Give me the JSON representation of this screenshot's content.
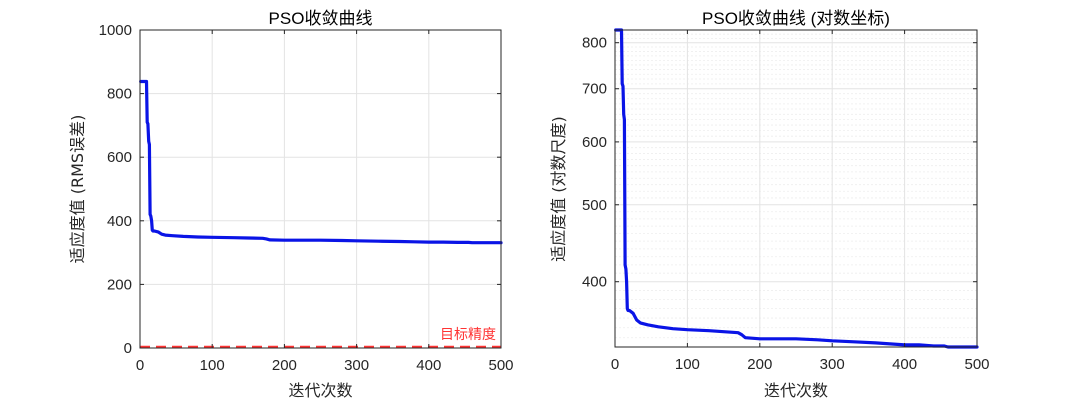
{
  "colors": {
    "curve": "#0a14e6",
    "target": "#ff3333",
    "axis": "#262626",
    "grid": "#e3e3e3",
    "minor_grid": "#eeeeee"
  },
  "chart_data": [
    {
      "type": "line",
      "title": "PSO收敛曲线",
      "xlabel": "迭代次数",
      "ylabel": "适应度值 (RMS误差)",
      "xlim": [
        0,
        500
      ],
      "ylim": [
        0,
        1000
      ],
      "xticks": [
        0,
        100,
        200,
        300,
        400,
        500
      ],
      "yticks": [
        0,
        200,
        400,
        600,
        800,
        1000
      ],
      "grid": true,
      "series": [
        {
          "x": [
            1,
            9,
            10,
            11,
            12,
            13,
            14,
            15,
            16,
            17,
            18,
            20,
            25,
            30,
            35,
            45,
            60,
            80,
            100,
            130,
            150,
            170,
            175,
            180,
            200,
            250,
            280,
            300,
            330,
            360,
            380,
            400,
            420,
            440,
            455,
            460,
            480,
            500
          ],
          "y": [
            838,
            838,
            710,
            705,
            650,
            640,
            420,
            415,
            400,
            370,
            368,
            368,
            365,
            358,
            355,
            353,
            351,
            349,
            348,
            347,
            346,
            345,
            343,
            340,
            339,
            339,
            338,
            337,
            336,
            335,
            334,
            333,
            333,
            332,
            332,
            331,
            331,
            331
          ]
        }
      ],
      "annotation": {
        "text": "目标精度",
        "y": 0
      }
    },
    {
      "type": "line",
      "title": "PSO收敛曲线 (对数坐标)",
      "xlabel": "迭代次数",
      "ylabel": "适应度值 (对数尺度)",
      "yscale": "log",
      "xlim": [
        0,
        500
      ],
      "ylim": [
        331,
        830
      ],
      "xticks": [
        0,
        100,
        200,
        300,
        400,
        500
      ],
      "yticks": [
        400,
        500,
        600,
        700,
        800
      ],
      "grid": true,
      "minor_grid": true,
      "series": [
        {
          "x": [
            1,
            9,
            10,
            11,
            12,
            13,
            14,
            15,
            16,
            17,
            18,
            20,
            25,
            30,
            35,
            45,
            60,
            80,
            100,
            130,
            150,
            170,
            175,
            180,
            200,
            250,
            280,
            300,
            330,
            360,
            380,
            400,
            420,
            440,
            455,
            460,
            480,
            500
          ],
          "y": [
            838,
            838,
            710,
            705,
            650,
            640,
            420,
            415,
            400,
            370,
            368,
            368,
            365,
            358,
            355,
            353,
            351,
            349,
            348,
            347,
            346,
            345,
            343,
            340,
            339,
            339,
            338,
            337,
            336,
            335,
            334,
            333,
            333,
            332,
            332,
            331,
            331,
            331
          ]
        }
      ]
    }
  ]
}
